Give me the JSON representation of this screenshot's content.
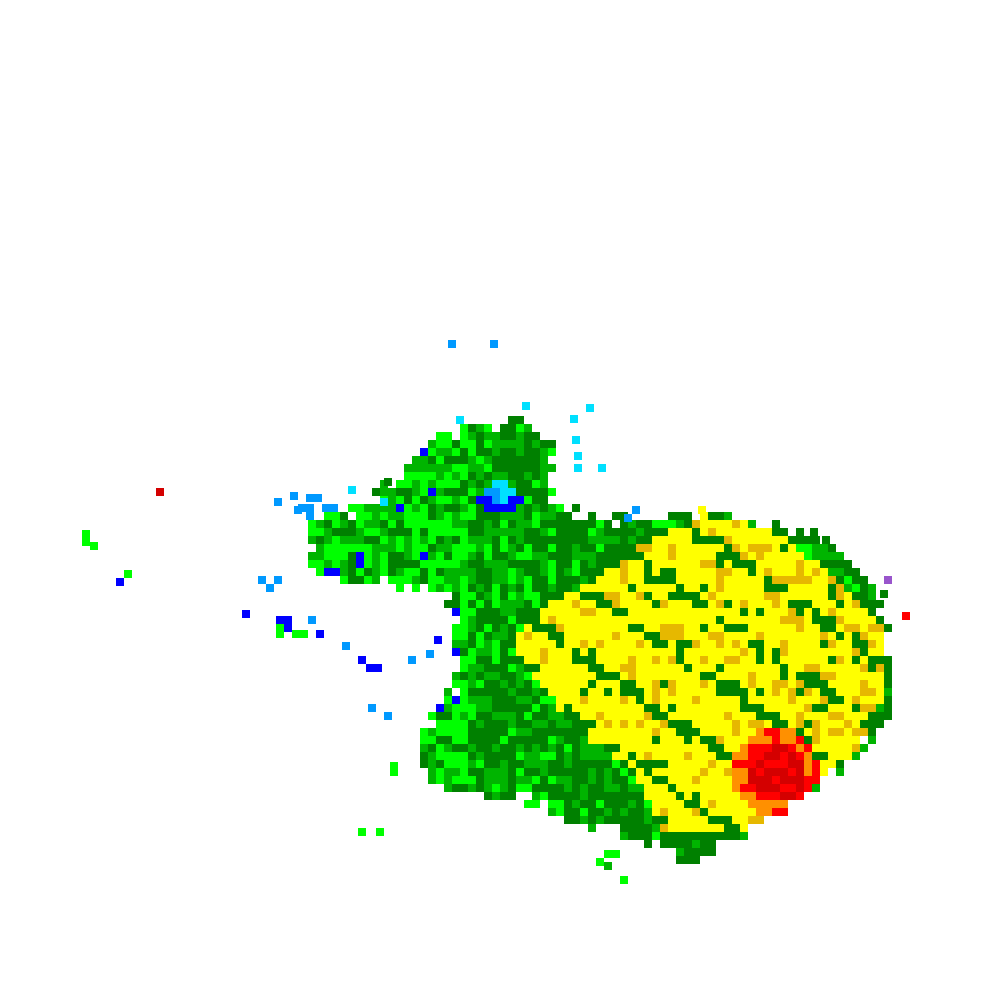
{
  "palette": {
    "background": "#ffffff",
    "dark_green": "#008000",
    "green": "#00b400",
    "bright_green": "#00ff00",
    "yellow": "#ffff00",
    "gold": "#e6b800",
    "orange": "#ff9000",
    "red": "#ff0000",
    "dark_red": "#d40000",
    "blue": "#0000ff",
    "light_blue": "#0099ff",
    "cyan": "#00e0ff",
    "purple": "#9955cc"
  }
}
